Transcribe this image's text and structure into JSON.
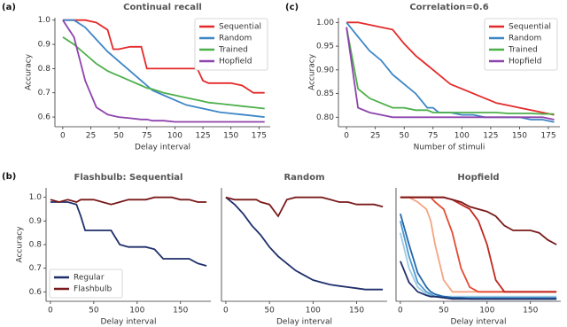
{
  "panel_labels": [
    "(a)",
    "(c)",
    "(b)"
  ],
  "chart_data": [
    {
      "type": "line",
      "title": "Continual recall",
      "xlabel": "Delay interval",
      "ylabel": "Accuracy",
      "legend": "upper right",
      "x": [
        0,
        10,
        20,
        30,
        40,
        45,
        50,
        60,
        70,
        75,
        80,
        90,
        100,
        110,
        120,
        125,
        130,
        140,
        150,
        160,
        170,
        180
      ],
      "xlim": [
        -7,
        185
      ],
      "xticks": [
        0,
        25,
        50,
        75,
        100,
        125,
        150,
        175
      ],
      "ylim": [
        0.56,
        1.01
      ],
      "yticks": [
        0.6,
        0.7,
        0.8,
        0.9,
        {
          "value": 1,
          "label": "1.0"
        }
      ],
      "series": [
        {
          "name": "Sequential",
          "color": "#e32a2a",
          "values": [
            1.0,
            1.0,
            1.0,
            0.99,
            0.96,
            0.88,
            0.88,
            0.89,
            0.89,
            0.8,
            0.8,
            0.8,
            0.8,
            0.8,
            0.8,
            0.75,
            0.74,
            0.74,
            0.74,
            0.73,
            0.7,
            0.7
          ]
        },
        {
          "name": "Random",
          "color": "#3d86c6",
          "values": [
            1.0,
            1.0,
            0.97,
            0.92,
            0.87,
            0.85,
            0.83,
            0.79,
            0.75,
            0.73,
            0.71,
            0.69,
            0.67,
            0.65,
            0.64,
            0.635,
            0.63,
            0.62,
            0.615,
            0.61,
            0.605,
            0.6
          ]
        },
        {
          "name": "Trained",
          "color": "#4daf4a",
          "values": [
            0.93,
            0.9,
            0.86,
            0.82,
            0.79,
            0.78,
            0.77,
            0.75,
            0.73,
            0.72,
            0.715,
            0.7,
            0.69,
            0.68,
            0.67,
            0.665,
            0.66,
            0.655,
            0.65,
            0.645,
            0.64,
            0.635
          ]
        },
        {
          "name": "Hopfield",
          "color": "#8e44ad",
          "values": [
            1.0,
            0.93,
            0.75,
            0.64,
            0.61,
            0.605,
            0.6,
            0.595,
            0.59,
            0.59,
            0.585,
            0.585,
            0.58,
            0.58,
            0.58,
            0.58,
            0.58,
            0.58,
            0.58,
            0.58,
            0.58,
            0.58
          ]
        }
      ]
    },
    {
      "type": "line",
      "title": "Correlation=0.6",
      "xlabel": "Number of stimuli",
      "ylabel": "Accuracy",
      "legend": "upper right",
      "x": [
        0,
        10,
        20,
        30,
        40,
        45,
        50,
        60,
        70,
        75,
        80,
        90,
        100,
        110,
        120,
        125,
        130,
        140,
        150,
        160,
        170,
        180
      ],
      "xlim": [
        -7,
        185
      ],
      "xticks": [
        0,
        25,
        50,
        75,
        100,
        125,
        150,
        175
      ],
      "ylim": [
        0.78,
        1.01
      ],
      "yticks": [
        {
          "value": 0.8,
          "label": "0.80"
        },
        0.85,
        {
          "value": 0.9,
          "label": "0.90"
        },
        0.95,
        {
          "value": 1,
          "label": "1.00"
        }
      ],
      "series": [
        {
          "name": "Sequential",
          "color": "#e32a2a",
          "values": [
            1.0,
            1.0,
            0.995,
            0.99,
            0.985,
            0.97,
            0.955,
            0.93,
            0.91,
            0.9,
            0.89,
            0.87,
            0.86,
            0.85,
            0.84,
            0.835,
            0.83,
            0.825,
            0.82,
            0.815,
            0.81,
            0.805
          ]
        },
        {
          "name": "Random",
          "color": "#3d86c6",
          "values": [
            1.0,
            0.97,
            0.94,
            0.92,
            0.89,
            0.88,
            0.87,
            0.85,
            0.82,
            0.82,
            0.81,
            0.81,
            0.805,
            0.805,
            0.8,
            0.8,
            0.8,
            0.8,
            0.8,
            0.795,
            0.795,
            0.79
          ]
        },
        {
          "name": "Trained",
          "color": "#4daf4a",
          "values": [
            0.99,
            0.86,
            0.84,
            0.83,
            0.82,
            0.82,
            0.82,
            0.815,
            0.815,
            0.81,
            0.81,
            0.81,
            0.81,
            0.81,
            0.81,
            0.81,
            0.81,
            0.808,
            0.808,
            0.808,
            0.807,
            0.807
          ]
        },
        {
          "name": "Hopfield",
          "color": "#8e44ad",
          "values": [
            0.99,
            0.82,
            0.81,
            0.805,
            0.8,
            0.8,
            0.8,
            0.8,
            0.8,
            0.8,
            0.8,
            0.8,
            0.8,
            0.8,
            0.8,
            0.8,
            0.8,
            0.8,
            0.8,
            0.8,
            0.8,
            0.795
          ]
        }
      ]
    },
    {
      "type": "line",
      "title": "Flashbulb: Sequential",
      "xlabel": "Delay interval",
      "ylabel": "Accuracy",
      "legend": "lower left",
      "x": [
        0,
        10,
        20,
        30,
        35,
        40,
        50,
        60,
        70,
        80,
        90,
        100,
        110,
        120,
        130,
        140,
        150,
        160,
        170,
        180
      ],
      "xlim": [
        -5,
        185
      ],
      "xticks": [
        0,
        50,
        100,
        150
      ],
      "ylim": [
        0.56,
        1.04
      ],
      "yticks": [
        0.6,
        0.7,
        0.8,
        0.9,
        {
          "value": 1,
          "label": "1.0"
        }
      ],
      "series": [
        {
          "name": "Regular",
          "color": "#1f2f6b",
          "values": [
            0.98,
            0.98,
            0.98,
            0.97,
            0.92,
            0.86,
            0.86,
            0.86,
            0.86,
            0.8,
            0.79,
            0.79,
            0.79,
            0.78,
            0.74,
            0.74,
            0.74,
            0.74,
            0.72,
            0.71
          ]
        },
        {
          "name": "Flashbulb",
          "color": "#7a1a1a",
          "values": [
            0.99,
            0.98,
            0.99,
            0.98,
            0.99,
            0.99,
            0.99,
            0.98,
            0.97,
            0.98,
            0.99,
            0.99,
            0.99,
            1.0,
            1.0,
            1.0,
            0.99,
            0.99,
            0.98,
            0.98
          ]
        }
      ]
    },
    {
      "type": "line",
      "title": "Random",
      "xlabel": "Delay interval",
      "x": [
        0,
        10,
        20,
        30,
        35,
        40,
        50,
        60,
        70,
        80,
        90,
        100,
        110,
        120,
        130,
        140,
        150,
        160,
        170,
        180
      ],
      "xlim": [
        -5,
        185
      ],
      "xticks": [
        0,
        50,
        100,
        150
      ],
      "ylim": [
        0.56,
        1.04
      ],
      "series": [
        {
          "color": "#1f2f6b",
          "values": [
            1.0,
            0.97,
            0.93,
            0.88,
            0.86,
            0.84,
            0.79,
            0.75,
            0.72,
            0.69,
            0.67,
            0.65,
            0.64,
            0.63,
            0.625,
            0.62,
            0.615,
            0.61,
            0.61,
            0.61
          ]
        },
        {
          "color": "#7a1a1a",
          "values": [
            1.0,
            0.99,
            0.99,
            0.99,
            0.99,
            0.98,
            0.97,
            0.92,
            0.99,
            1.0,
            1.0,
            1.0,
            1.0,
            0.99,
            0.98,
            0.98,
            0.97,
            0.97,
            0.97,
            0.96
          ]
        }
      ]
    },
    {
      "type": "line",
      "title": "Hopfield",
      "xlabel": "Delay interval",
      "x": [
        0,
        10,
        20,
        30,
        35,
        40,
        50,
        60,
        70,
        80,
        90,
        100,
        110,
        120,
        130,
        140,
        150,
        160,
        170,
        180
      ],
      "xlim": [
        -5,
        185
      ],
      "xticks": [
        0,
        50,
        100,
        150
      ],
      "ylim": [
        0.56,
        1.04
      ],
      "series": [
        {
          "color": "#9ecae1",
          "values": [
            0.85,
            0.7,
            0.62,
            0.59,
            0.585,
            0.58,
            0.58,
            0.58,
            0.58,
            0.58,
            0.58,
            0.58,
            0.58,
            0.58,
            0.58,
            0.58,
            0.58,
            0.58,
            0.58,
            0.58
          ]
        },
        {
          "color": "#4a98d0",
          "values": [
            0.9,
            0.75,
            0.64,
            0.6,
            0.59,
            0.58,
            0.58,
            0.575,
            0.575,
            0.575,
            0.575,
            0.575,
            0.575,
            0.575,
            0.575,
            0.575,
            0.575,
            0.575,
            0.575,
            0.575
          ]
        },
        {
          "color": "#2166ac",
          "values": [
            0.93,
            0.8,
            0.68,
            0.62,
            0.6,
            0.59,
            0.58,
            0.575,
            0.575,
            0.57,
            0.57,
            0.57,
            0.57,
            0.57,
            0.57,
            0.57,
            0.57,
            0.57,
            0.57,
            0.57
          ]
        },
        {
          "color": "#1f2f6b",
          "values": [
            0.73,
            0.64,
            0.6,
            0.585,
            0.58,
            0.58,
            0.575,
            0.57,
            0.57,
            0.57,
            0.57,
            0.57,
            0.57,
            0.57,
            0.57,
            0.57,
            0.57,
            0.57,
            0.57,
            0.57
          ]
        },
        {
          "color": "#f4a582",
          "values": [
            1.0,
            1.0,
            0.98,
            0.95,
            0.9,
            0.8,
            0.65,
            0.6,
            0.6,
            0.6,
            0.6,
            0.6,
            0.6,
            0.6,
            0.6,
            0.6,
            0.6,
            0.6,
            0.6,
            0.6
          ]
        },
        {
          "color": "#e34a33",
          "values": [
            1.0,
            1.0,
            1.0,
            1.0,
            1.0,
            0.98,
            0.95,
            0.85,
            0.7,
            0.62,
            0.6,
            0.6,
            0.6,
            0.6,
            0.6,
            0.6,
            0.6,
            0.6,
            0.6,
            0.6
          ]
        },
        {
          "color": "#c0281f",
          "values": [
            1.0,
            1.0,
            1.0,
            1.0,
            1.0,
            1.0,
            1.0,
            0.99,
            0.97,
            0.95,
            0.9,
            0.8,
            0.65,
            0.6,
            0.6,
            0.6,
            0.6,
            0.6,
            0.6,
            0.6
          ]
        },
        {
          "color": "#7a1a1a",
          "values": [
            1.0,
            1.0,
            1.0,
            1.0,
            1.0,
            1.0,
            1.0,
            0.99,
            0.98,
            0.96,
            0.95,
            0.94,
            0.92,
            0.88,
            0.86,
            0.86,
            0.86,
            0.85,
            0.82,
            0.8
          ]
        }
      ]
    }
  ]
}
